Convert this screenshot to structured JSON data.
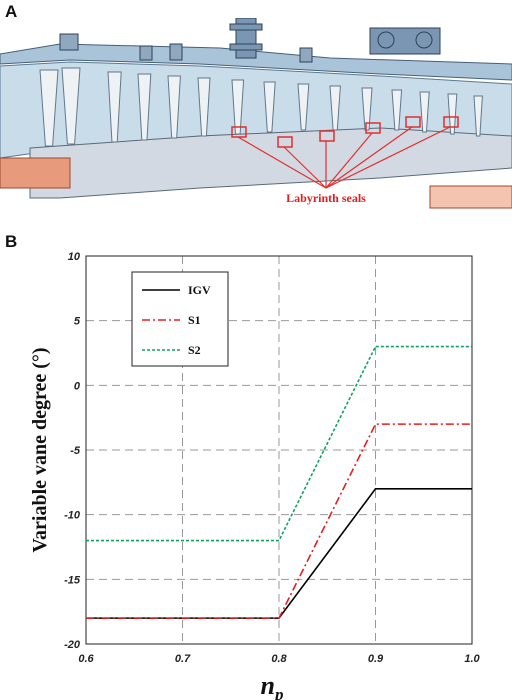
{
  "panel_a": {
    "label": "A",
    "annotation": "Labyrinth seals",
    "colors": {
      "casing": "#c9dcea",
      "blade": "#eef2f4",
      "rotor": "#d2d9e2",
      "highlight": "#e03030",
      "flange": "#e89a7c"
    }
  },
  "panel_b": {
    "label": "B"
  },
  "chart_data": {
    "type": "line",
    "xlabel": "n",
    "xlabel_sub": "p",
    "ylabel": "Variable vane degree (°)",
    "xlim": [
      0.6,
      1.0
    ],
    "ylim": [
      -20,
      10
    ],
    "xticks": [
      "0.6",
      "0.7",
      "0.8",
      "0.9",
      "1.0"
    ],
    "yticks": [
      "10",
      "5",
      "0",
      "-5",
      "-10",
      "-15",
      "-20"
    ],
    "grid": true,
    "legend_position": "top-left",
    "series": [
      {
        "name": "IGV",
        "color": "#000000",
        "dash": "",
        "x": [
          0.6,
          0.8,
          0.9,
          1.0
        ],
        "y": [
          -18,
          -18,
          -8,
          -8
        ]
      },
      {
        "name": "S1",
        "color": "#e02020",
        "dash": "8,3,2,3",
        "x": [
          0.6,
          0.8,
          0.9,
          1.0
        ],
        "y": [
          -18,
          -18,
          -3,
          -3
        ]
      },
      {
        "name": "S2",
        "color": "#10a060",
        "dash": "3,2",
        "x": [
          0.6,
          0.8,
          0.9,
          1.0
        ],
        "y": [
          -12,
          -12,
          3,
          3
        ]
      }
    ]
  }
}
